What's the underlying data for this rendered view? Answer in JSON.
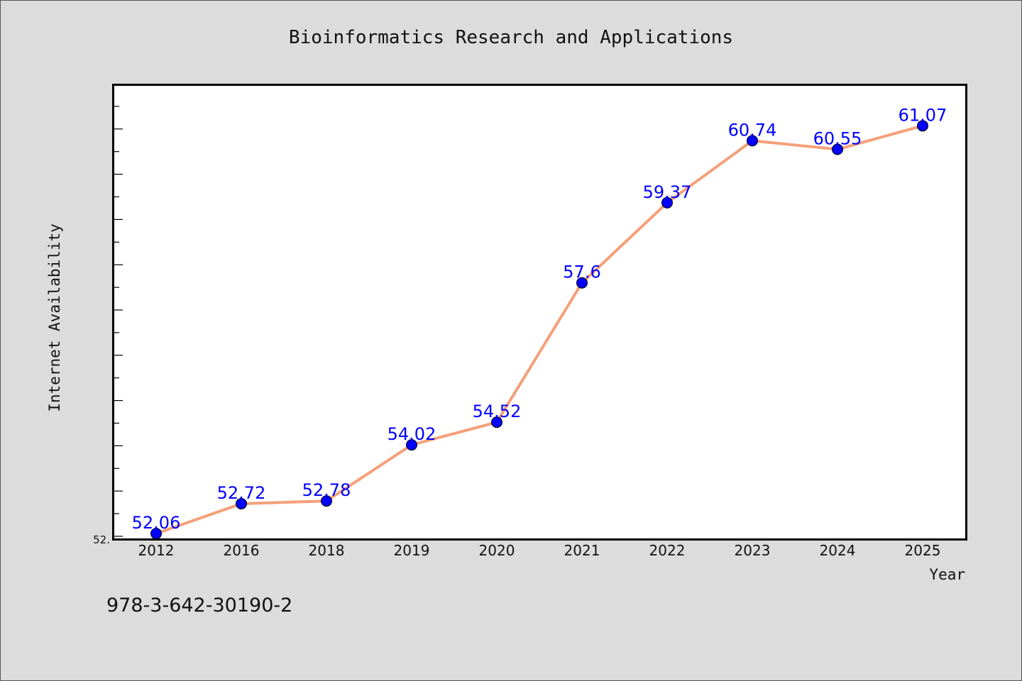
{
  "chart_data": {
    "type": "line",
    "title": "Bioinformatics Research and Applications",
    "xlabel": "Year",
    "ylabel": "Internet Availability",
    "categories": [
      "2012",
      "2016",
      "2018",
      "2019",
      "2020",
      "2021",
      "2022",
      "2023",
      "2024",
      "2025"
    ],
    "series": [
      {
        "values": [
          52.06,
          52.72,
          52.78,
          54.02,
          54.52,
          57.6,
          59.37,
          60.74,
          60.55,
          61.07
        ],
        "labels": [
          "52.06",
          "52.72",
          "52.78",
          "54.02",
          "54.52",
          "57.6",
          "59.37",
          "60.74",
          "60.55",
          "61.07"
        ]
      }
    ],
    "ylim": [
      52.0,
      62.0
    ],
    "y_tick_label": "52.",
    "line_color": "#f5a07a",
    "marker_color": "#0000ff",
    "label_color": "#0000ff",
    "grid": false,
    "legend": "none"
  },
  "footer": {
    "identifier": "978-3-642-30190-2"
  }
}
